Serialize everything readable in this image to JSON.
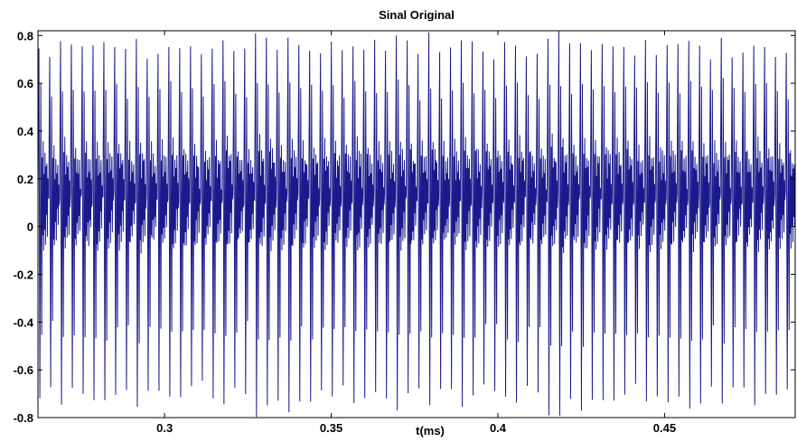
{
  "chart_data": {
    "type": "line",
    "title": "Sinal Original",
    "xlabel": "t(ms)",
    "ylabel": "",
    "xlim": [
      0.262,
      0.4892
    ],
    "ylim": [
      -0.8,
      0.82
    ],
    "xticks": [
      0.3,
      0.35,
      0.4,
      0.45
    ],
    "xtick_labels": [
      "0.3",
      "0.35",
      "0.4",
      "0.45"
    ],
    "yticks": [
      -0.8,
      -0.6,
      -0.4,
      -0.2,
      0,
      0.2,
      0.4,
      0.6,
      0.8
    ],
    "ytick_labels": [
      "-0.8",
      "-0.6",
      "-0.4",
      "-0.2",
      "0",
      "0.2",
      "0.4",
      "0.6",
      "0.8"
    ],
    "grid": false,
    "series": [
      {
        "color": "#1a1a8c",
        "description_of_shape": "dense periodic waveform, ~70 cycles across the window; each cycle has a sharp positive peak near 0.75, a sharp negative trough near -0.72, and several smaller oscillations between -0.1 and 0.35",
        "period": 0.00325,
        "x_start": 0.262,
        "x_end": 0.4892,
        "pulse_pattern": [
          0.12,
          0.45,
          0.76,
          0.05,
          -0.72,
          -0.1,
          0.58,
          0.02,
          -0.45,
          0.3,
          -0.05,
          0.35,
          -0.08,
          0.22,
          0.0,
          0.3,
          -0.06,
          0.25,
          0.05,
          0.28,
          -0.02,
          0.18,
          0.1
        ]
      }
    ]
  }
}
